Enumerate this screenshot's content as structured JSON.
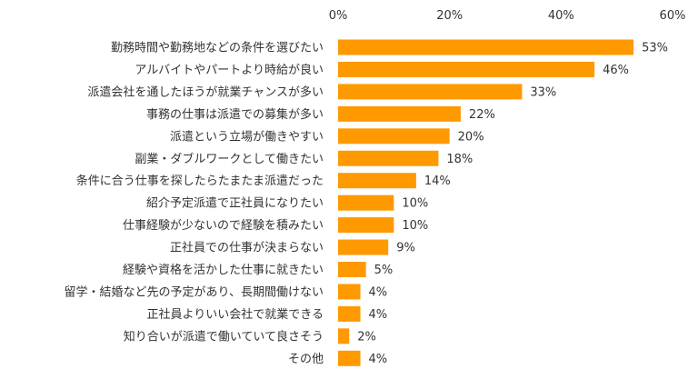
{
  "chart_data": {
    "type": "bar",
    "orientation": "horizontal",
    "categories": [
      "勤務時間や勤務地などの条件を選びたい",
      "アルバイトやパートより時給が良い",
      "派遣会社を通したほうが就業チャンスが多い",
      "事務の仕事は派遣での募集が多い",
      "派遣という立場が働きやすい",
      "副業・ダブルワークとして働きたい",
      "条件に合う仕事を探したらたまたま派遣だった",
      "紹介予定派遣で正社員になりたい",
      "仕事経験が少ないので経験を積みたい",
      "正社員での仕事が決まらない",
      "経験や資格を活かした仕事に就きたい",
      "留学・結婚など先の予定があり、長期間働けない",
      "正社員よりいい会社で就業できる",
      "知り合いが派遣で働いていて良さそう",
      "その他"
    ],
    "values": [
      53,
      46,
      33,
      22,
      20,
      18,
      14,
      10,
      10,
      9,
      5,
      4,
      4,
      2,
      4
    ],
    "value_labels": [
      "53%",
      "46%",
      "33%",
      "22%",
      "20%",
      "18%",
      "14%",
      "10%",
      "10%",
      "9%",
      "5%",
      "4%",
      "4%",
      "2%",
      "4%"
    ],
    "xlim": [
      0,
      60
    ],
    "x_ticks": [
      0,
      20,
      40,
      60
    ],
    "x_tick_labels": [
      "0%",
      "20%",
      "40%",
      "60%"
    ],
    "axis_position": "top",
    "grid": false,
    "legend": "none",
    "bar_color": "#FF9900",
    "text_color": "#333333"
  }
}
